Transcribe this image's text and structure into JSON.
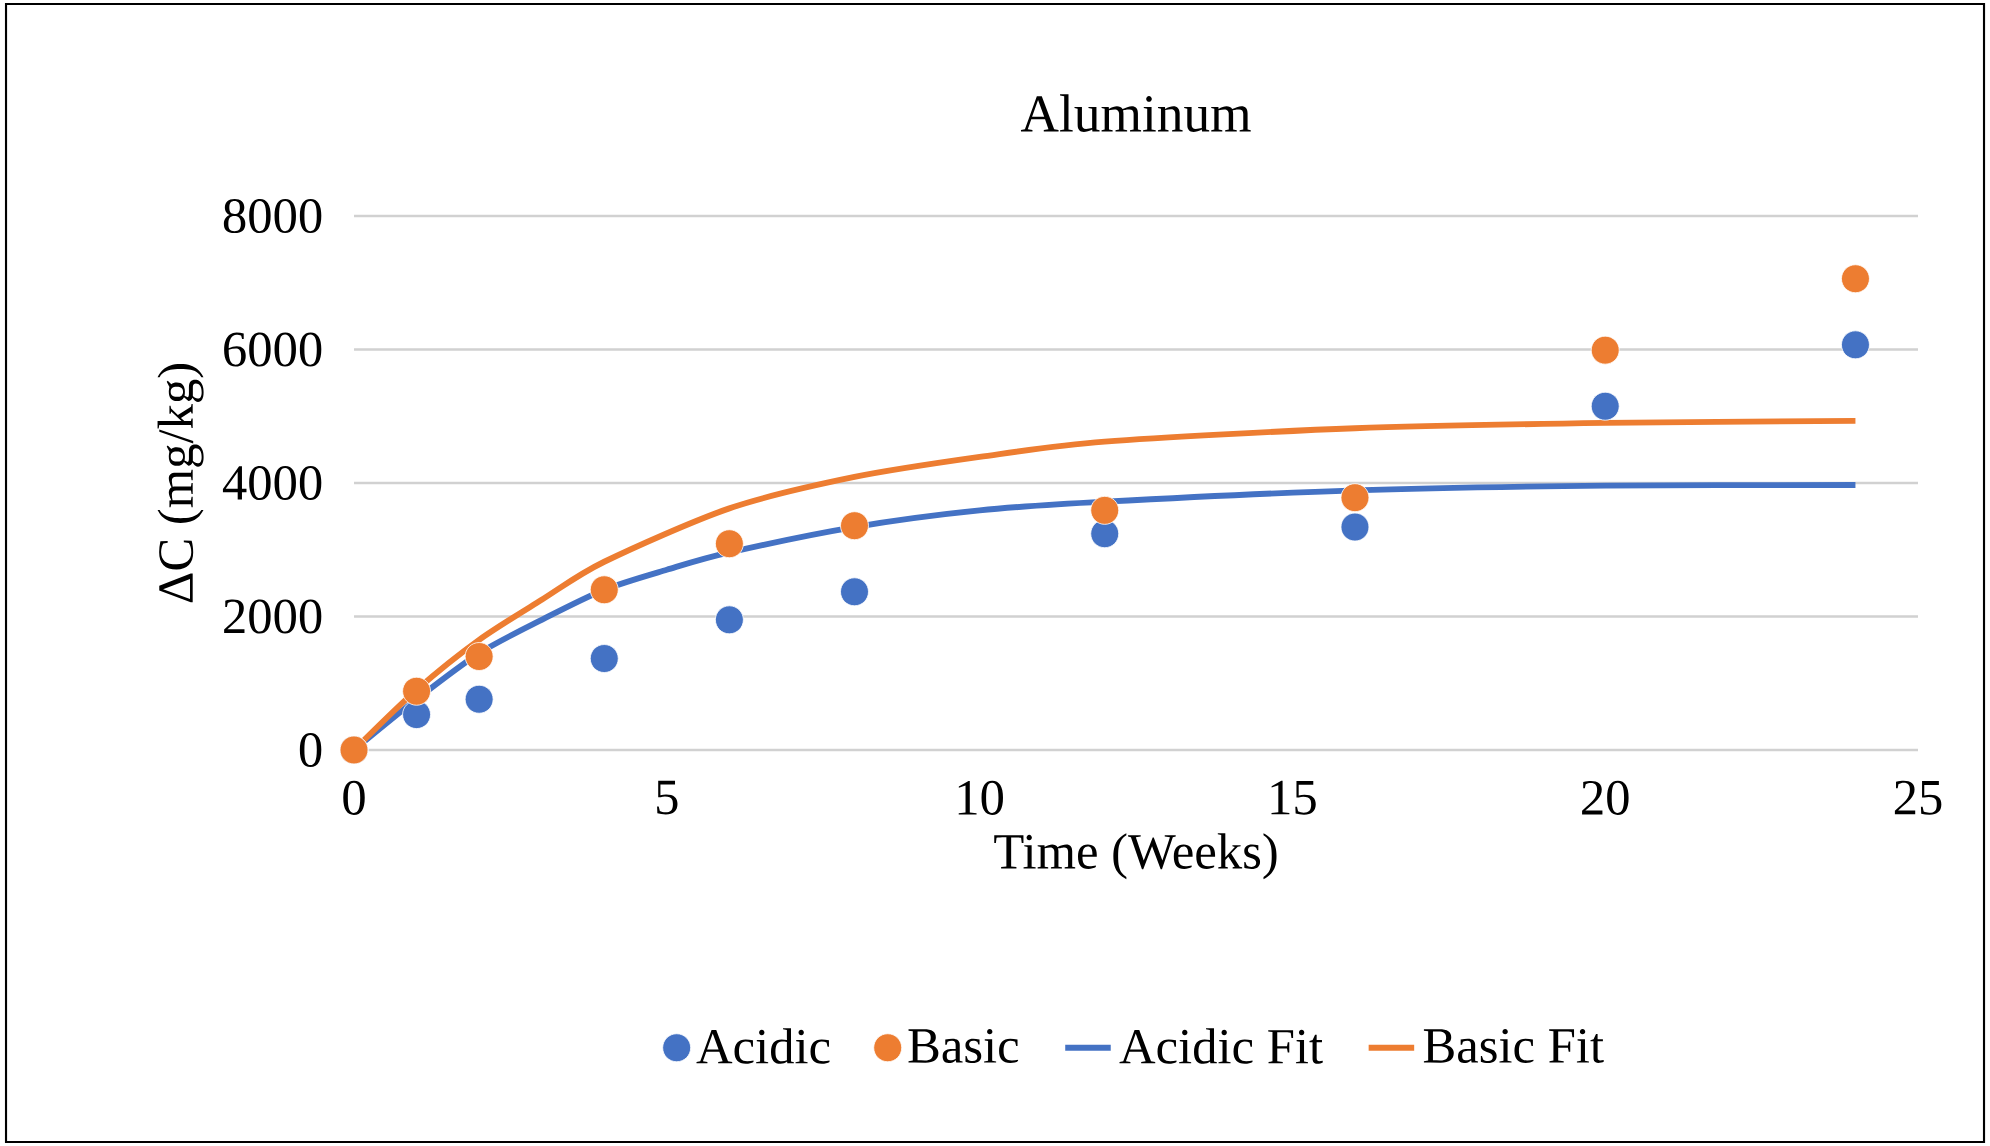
{
  "chart_data": {
    "type": "scatter",
    "title": "Aluminum",
    "xlabel": "Time (Weeks)",
    "ylabel": "ΔC (mg/kg)",
    "xlim": [
      0,
      25
    ],
    "xticks": [
      0,
      5,
      10,
      15,
      20,
      25
    ],
    "ylim": [
      0,
      8000
    ],
    "yticks": [
      0,
      2000,
      4000,
      6000,
      8000
    ],
    "grid": "y",
    "legend": "bottom",
    "marker": "circle",
    "series": [
      {
        "name": "Acidic",
        "color": "#4472c4",
        "x": [
          0,
          1,
          2,
          4,
          6,
          8,
          12,
          16,
          20,
          24
        ],
        "values": [
          0,
          530,
          760,
          1370,
          1950,
          2370,
          3240,
          3340,
          5150,
          6070
        ]
      },
      {
        "name": "Basic",
        "color": "#ed7d31",
        "x": [
          0,
          1,
          2,
          4,
          6,
          8,
          12,
          16,
          20,
          24
        ],
        "values": [
          0,
          880,
          1400,
          2400,
          3090,
          3360,
          3590,
          3780,
          5990,
          7060
        ]
      },
      {
        "name": "Acidic Fit",
        "type": "line",
        "marker": "none",
        "color": "#4472c4",
        "x": [
          0,
          1,
          2,
          3,
          4,
          5,
          6,
          8,
          10,
          12,
          16,
          20,
          24
        ],
        "values": [
          0,
          760,
          1450,
          1950,
          2400,
          2700,
          2960,
          3340,
          3590,
          3720,
          3890,
          3960,
          3970
        ]
      },
      {
        "name": "Basic Fit",
        "type": "line",
        "marker": "none",
        "color": "#ed7d31",
        "x": [
          0,
          1,
          2,
          3,
          4,
          6,
          8,
          10,
          12,
          16,
          20,
          24
        ],
        "values": [
          0,
          900,
          1650,
          2250,
          2820,
          3620,
          4090,
          4390,
          4620,
          4820,
          4900,
          4930
        ]
      }
    ]
  }
}
